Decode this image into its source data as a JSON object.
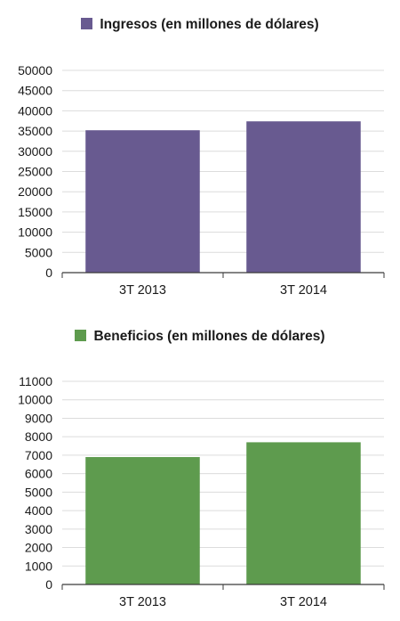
{
  "chart_data": [
    {
      "type": "bar",
      "title": "",
      "xlabel": "",
      "ylabel": "",
      "categories": [
        "3T 2013",
        "3T 2014"
      ],
      "series": [
        {
          "name": "Ingresos (en millones de dólares)",
          "color": "#685a90",
          "values": [
            35200,
            37400
          ]
        }
      ],
      "ylim": [
        0,
        50000
      ],
      "yticks": [
        0,
        5000,
        10000,
        15000,
        20000,
        25000,
        30000,
        35000,
        40000,
        45000,
        50000
      ],
      "grid": true,
      "legend_position": "top-center"
    },
    {
      "type": "bar",
      "title": "",
      "xlabel": "",
      "ylabel": "",
      "categories": [
        "3T 2013",
        "3T 2014"
      ],
      "series": [
        {
          "name": "Beneficios (en millones de dólares)",
          "color": "#5e9b4e",
          "values": [
            6900,
            7700
          ]
        }
      ],
      "ylim": [
        0,
        11000
      ],
      "yticks": [
        0,
        1000,
        2000,
        3000,
        4000,
        5000,
        6000,
        7000,
        8000,
        9000,
        10000,
        11000
      ],
      "grid": true,
      "legend_position": "top-center"
    }
  ]
}
